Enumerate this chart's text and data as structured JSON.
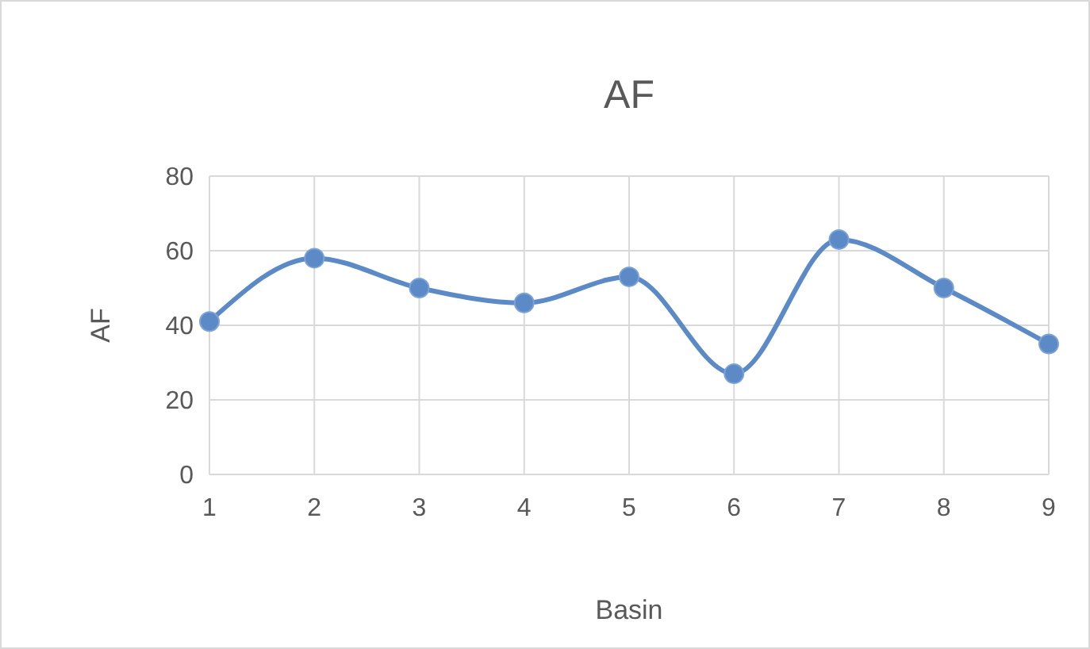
{
  "chart_data": {
    "type": "line",
    "title": "AF",
    "xlabel": "Basin",
    "ylabel": "AF",
    "x": [
      1,
      2,
      3,
      4,
      5,
      6,
      7,
      8,
      9
    ],
    "series": [
      {
        "color": "#5b8ac6",
        "values": [
          41,
          58,
          50,
          46,
          53,
          27,
          63,
          50,
          35
        ]
      }
    ],
    "xlim": [
      1,
      9
    ],
    "xticks": [
      1,
      2,
      3,
      4,
      5,
      6,
      7,
      8,
      9
    ],
    "ylim": [
      0,
      80
    ],
    "yticks": [
      0,
      20,
      40,
      60,
      80
    ],
    "grid": true,
    "marker": "circle",
    "line_style": "solid"
  }
}
